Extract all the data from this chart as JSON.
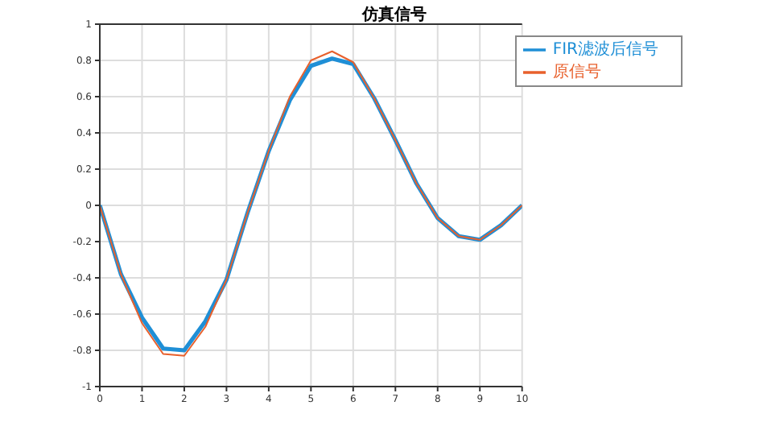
{
  "chart_data": {
    "type": "line",
    "title": "仿真信号",
    "x": [
      0,
      0.5,
      1,
      1.5,
      2,
      2.5,
      3,
      3.5,
      4,
      4.5,
      5,
      5.5,
      6,
      6.5,
      7,
      7.5,
      8,
      8.5,
      9,
      9.5,
      10
    ],
    "series": [
      {
        "name": "FIR滤波后信号",
        "color": "#1f8fd6",
        "values": [
          0,
          -0.38,
          -0.62,
          -0.79,
          -0.8,
          -0.64,
          -0.41,
          -0.04,
          0.3,
          0.58,
          0.77,
          0.81,
          0.78,
          0.59,
          0.36,
          0.12,
          -0.07,
          -0.17,
          -0.19,
          -0.11,
          0
        ]
      },
      {
        "name": "原信号",
        "color": "#e8602c",
        "values": [
          0,
          -0.38,
          -0.65,
          -0.82,
          -0.83,
          -0.67,
          -0.41,
          -0.04,
          0.3,
          0.6,
          0.8,
          0.85,
          0.79,
          0.59,
          0.36,
          0.12,
          -0.07,
          -0.17,
          -0.19,
          -0.11,
          0
        ]
      }
    ],
    "xlim": [
      0,
      10
    ],
    "xticks": [
      0,
      1,
      2,
      3,
      4,
      5,
      6,
      7,
      8,
      9,
      10
    ],
    "ylim": [
      -1,
      1
    ],
    "yticks": [
      -1,
      -0.8,
      -0.6,
      -0.4,
      -0.2,
      0,
      0.2,
      0.4,
      0.6,
      0.8,
      1
    ],
    "grid": true,
    "legend": "top right",
    "marker": "none",
    "line_style": "solid"
  }
}
